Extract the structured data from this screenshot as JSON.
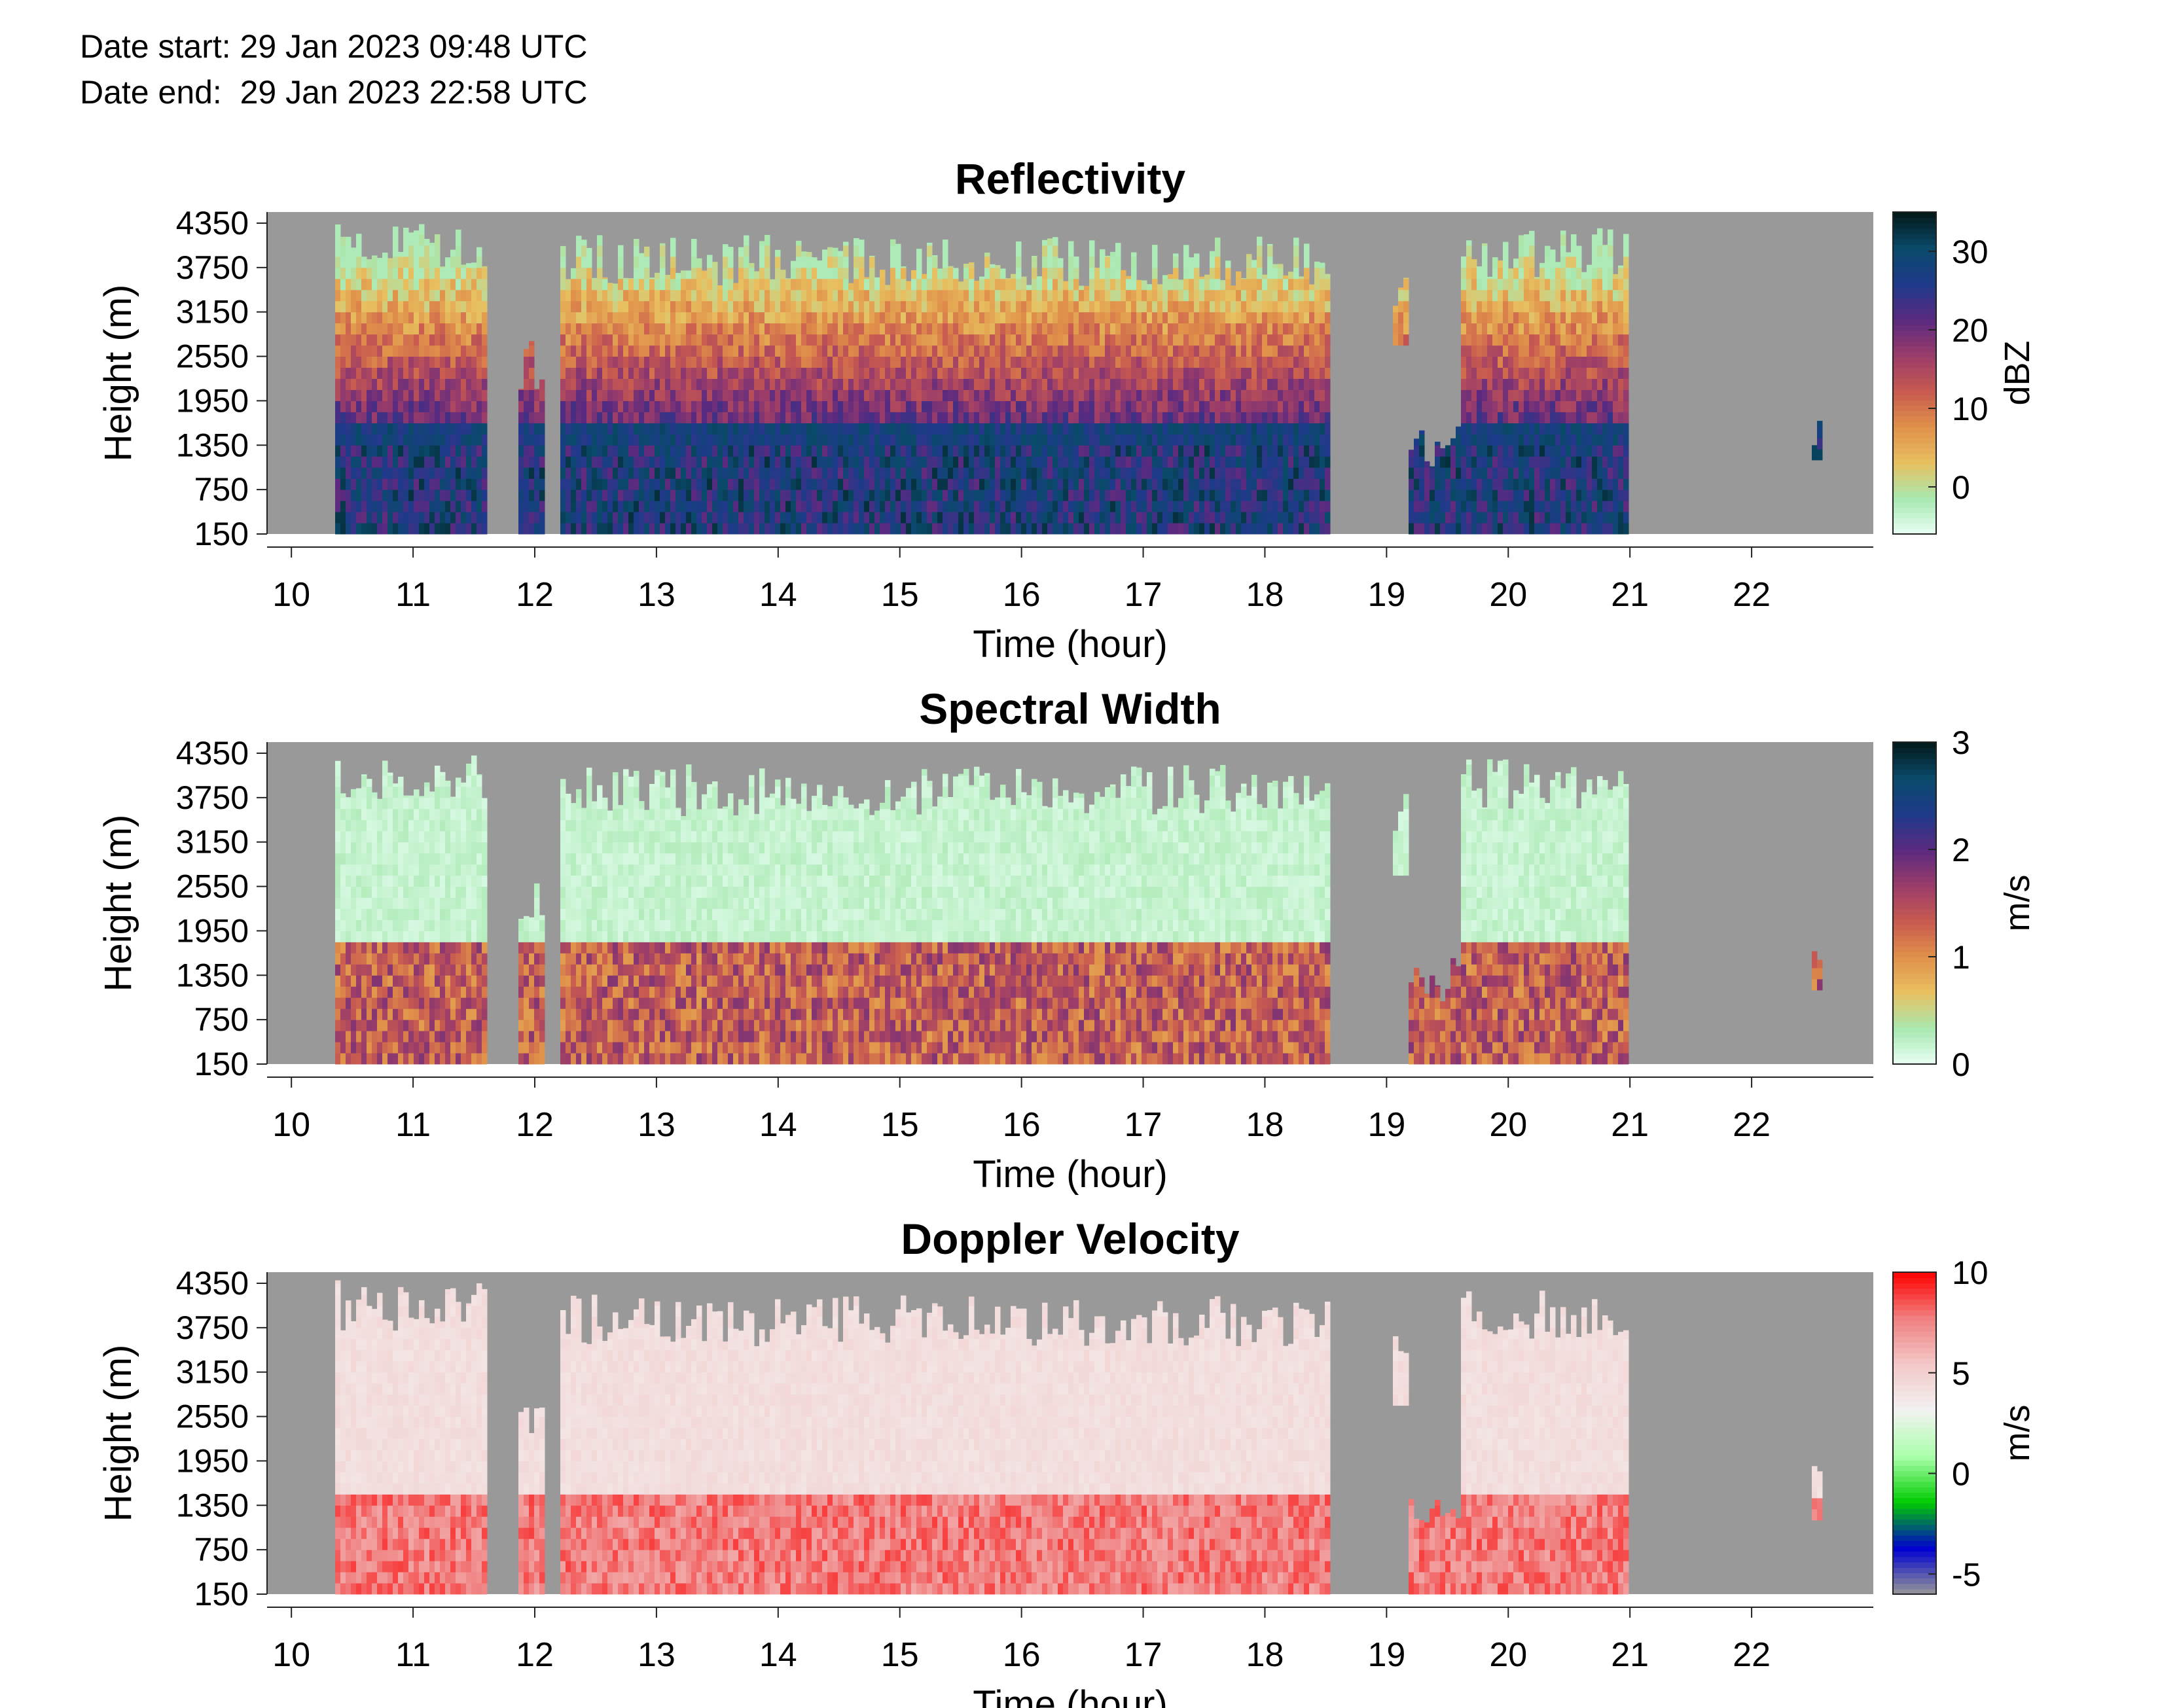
{
  "header": {
    "date_start": "Date start: 29 Jan 2023 09:48 UTC",
    "date_end": "Date end:  29 Jan 2023 22:58 UTC"
  },
  "chart_data": [
    {
      "type": "heatmap",
      "title": "Reflectivity",
      "xlabel": "Time (hour)",
      "ylabel": "Height (m)",
      "xlim": [
        9.8,
        23.0
      ],
      "ylim": [
        150,
        4500
      ],
      "x_ticks": [
        10,
        11,
        12,
        13,
        14,
        15,
        16,
        17,
        18,
        19,
        20,
        21,
        22
      ],
      "y_ticks": [
        150,
        750,
        1350,
        1950,
        2550,
        3150,
        3750,
        4350
      ],
      "colorbar": {
        "label": "dBZ",
        "range": [
          -6,
          35
        ],
        "ticks": [
          0,
          10,
          20,
          30
        ],
        "colormap": [
          "#e8fff4",
          "#a8e8b0",
          "#e8c060",
          "#e0904a",
          "#c85a50",
          "#9a3c6a",
          "#5a2a80",
          "#1e3a8a",
          "#0a4a6a",
          "#021818"
        ]
      },
      "background": "#999999",
      "regions": [
        {
          "x": [
            10.35,
            11.6
          ],
          "top": 4400,
          "base": 150
        },
        {
          "x": [
            11.85,
            12.1
          ],
          "top": 2800,
          "base": 150
        },
        {
          "x": [
            12.2,
            18.55
          ],
          "top": 4200,
          "base": 150
        },
        {
          "x": [
            19.05,
            19.2
          ],
          "top": 3900,
          "base": 2700
        },
        {
          "x": [
            19.2,
            19.6
          ],
          "top": 1650,
          "base": 150
        },
        {
          "x": [
            19.6,
            21.0
          ],
          "top": 4300,
          "base": 150
        },
        {
          "x": [
            22.5,
            22.6
          ],
          "top": 1950,
          "base": 1150
        }
      ]
    },
    {
      "type": "heatmap",
      "title": "Spectral Width",
      "xlabel": "Time (hour)",
      "ylabel": "Height (m)",
      "xlim": [
        9.8,
        23.0
      ],
      "ylim": [
        150,
        4500
      ],
      "x_ticks": [
        10,
        11,
        12,
        13,
        14,
        15,
        16,
        17,
        18,
        19,
        20,
        21,
        22
      ],
      "y_ticks": [
        150,
        750,
        1350,
        1950,
        2550,
        3150,
        3750,
        4350
      ],
      "colorbar": {
        "label": "m/s",
        "range": [
          0,
          3
        ],
        "ticks": [
          0,
          1,
          2,
          3
        ],
        "colormap": [
          "#e8fff4",
          "#a8e8b0",
          "#e8c060",
          "#e0904a",
          "#c85a50",
          "#9a3c6a",
          "#5a2a80",
          "#1e3a8a",
          "#0a4a6a",
          "#021818"
        ]
      },
      "background": "#999999"
    },
    {
      "type": "heatmap",
      "title": "Doppler Velocity",
      "xlabel": "Time (hour)",
      "ylabel": "Height (m)",
      "xlim": [
        9.8,
        23.0
      ],
      "ylim": [
        150,
        4500
      ],
      "x_ticks": [
        10,
        11,
        12,
        13,
        14,
        15,
        16,
        17,
        18,
        19,
        20,
        21,
        22
      ],
      "y_ticks": [
        150,
        750,
        1350,
        1950,
        2550,
        3150,
        3750,
        4350
      ],
      "colorbar": {
        "label": "m/s",
        "range": [
          -6,
          10
        ],
        "ticks": [
          -5,
          0,
          5,
          10
        ],
        "colormap": [
          "#999999",
          "#0000d0",
          "#00cc00",
          "#aaffaa",
          "#f2f2f2",
          "#f4c8c8",
          "#f08080",
          "#ff0000"
        ]
      },
      "background": "#999999"
    }
  ]
}
